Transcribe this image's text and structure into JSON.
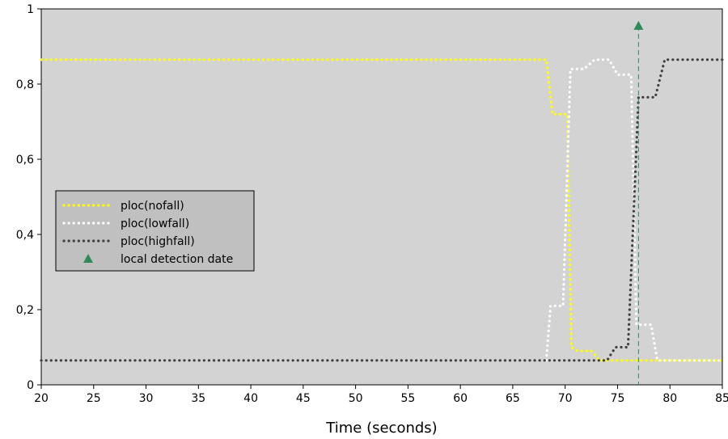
{
  "chart_data": {
    "type": "line",
    "title": "",
    "xlabel": "Time (seconds)",
    "ylabel": "",
    "xlim": [
      20,
      85
    ],
    "ylim": [
      0,
      1
    ],
    "x_ticks": [
      20,
      25,
      30,
      35,
      40,
      45,
      50,
      55,
      60,
      65,
      70,
      75,
      80,
      85
    ],
    "y_ticks": [
      0,
      0.2,
      0.4,
      0.6,
      0.8,
      1
    ],
    "y_tick_labels": [
      "0",
      "0,2",
      "0,4",
      "0,6",
      "0,8",
      "1"
    ],
    "grid": false,
    "legend_position": "center-left",
    "colors": {
      "plot_background": "#d3d3d3",
      "nofall": "#ffff00",
      "lowfall": "#ffffff",
      "highfall": "#404040",
      "detection": "#2e8b57"
    },
    "series": [
      {
        "name": "ploc(nofall)",
        "style": "dotted",
        "points": [
          [
            20,
            0.865
          ],
          [
            68.2,
            0.865
          ],
          [
            68.8,
            0.72
          ],
          [
            70.2,
            0.72
          ],
          [
            70.6,
            0.1
          ],
          [
            71.2,
            0.09
          ],
          [
            72.5,
            0.09
          ],
          [
            73.3,
            0.065
          ],
          [
            85,
            0.065
          ]
        ]
      },
      {
        "name": "ploc(lowfall)",
        "style": "dotted",
        "points": [
          [
            68.2,
            0.065
          ],
          [
            68.6,
            0.21
          ],
          [
            69.8,
            0.21
          ],
          [
            70.5,
            0.84
          ],
          [
            71.8,
            0.84
          ],
          [
            72.8,
            0.865
          ],
          [
            74.2,
            0.865
          ],
          [
            75.0,
            0.825
          ],
          [
            76.3,
            0.825
          ],
          [
            76.8,
            0.16
          ],
          [
            78.2,
            0.16
          ],
          [
            78.8,
            0.065
          ],
          [
            85,
            0.065
          ]
        ]
      },
      {
        "name": "ploc(highfall)",
        "style": "dotted",
        "points": [
          [
            20,
            0.065
          ],
          [
            74.0,
            0.065
          ],
          [
            74.8,
            0.1
          ],
          [
            76.0,
            0.1
          ],
          [
            77.0,
            0.765
          ],
          [
            78.6,
            0.765
          ],
          [
            79.5,
            0.865
          ],
          [
            85,
            0.865
          ]
        ]
      }
    ],
    "markers": [
      {
        "name": "local detection date",
        "x": 77,
        "y": 0.955,
        "marker": "triangle",
        "vline": true
      }
    ]
  }
}
